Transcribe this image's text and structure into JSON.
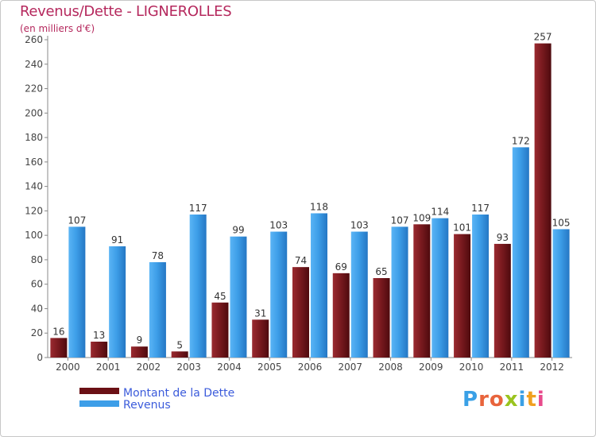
{
  "title": "Revenus/Dette - LIGNEROLLES",
  "subtitle": "(en milliers d'€)",
  "brand": "Proxiti",
  "colors": {
    "dette": "#7a1a1f",
    "revenus": "#3d9ee8",
    "title": "#b5285d"
  },
  "chart_data": {
    "type": "bar",
    "categories": [
      "2000",
      "2001",
      "2002",
      "2003",
      "2004",
      "2005",
      "2006",
      "2007",
      "2008",
      "2009",
      "2010",
      "2011",
      "2012"
    ],
    "series": [
      {
        "name": "Montant de la Dette",
        "values": [
          16,
          13,
          9,
          5,
          45,
          31,
          74,
          69,
          65,
          109,
          101,
          93,
          257
        ]
      },
      {
        "name": "Revenus",
        "values": [
          107,
          91,
          78,
          117,
          99,
          103,
          118,
          103,
          107,
          114,
          117,
          172,
          105
        ]
      }
    ],
    "ylim": [
      0,
      260
    ],
    "yticks": [
      0,
      20,
      40,
      60,
      80,
      100,
      120,
      140,
      160,
      180,
      200,
      220,
      240,
      260
    ],
    "grid": false,
    "legend": "bottom-left"
  }
}
